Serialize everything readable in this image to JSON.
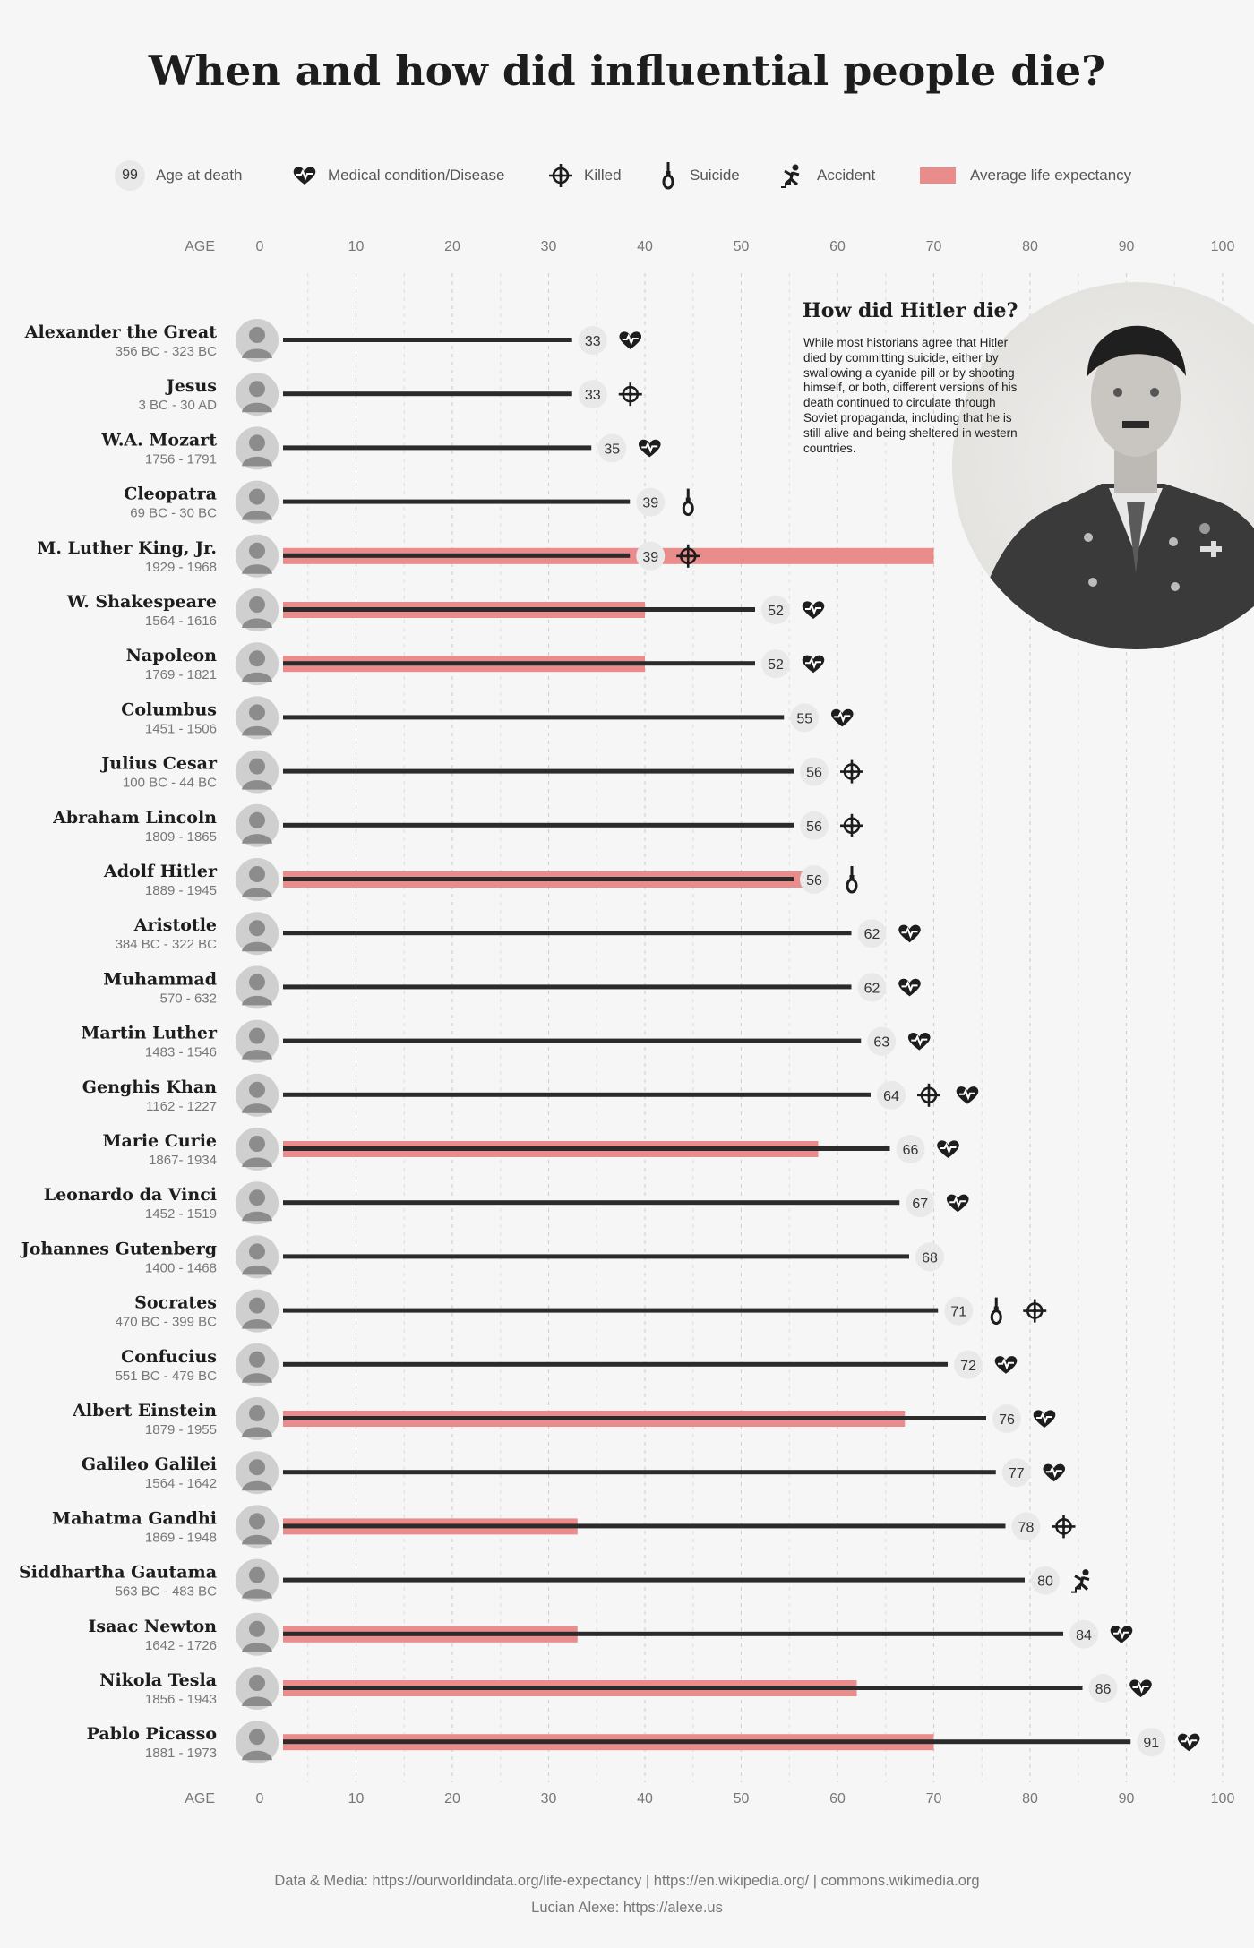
{
  "title": "When and how did influential people die?",
  "legend": {
    "age_badge": "99",
    "age_label": "Age at death",
    "medical_label": "Medical condition/Disease",
    "killed_label": "Killed",
    "suicide_label": "Suicide",
    "accident_label": "Accident",
    "expectancy_label": "Average life expectancy"
  },
  "inset": {
    "title": "How did Hitler die?",
    "text": "While most historians agree that Hitler died by committing suicide, either by swallowing a cyanide pill or by shooting himself, or both, different versions of his death continued to circulate through Soviet propaganda, including that he is still alive and being sheltered in western countries."
  },
  "footer": {
    "sources": "Data & Media: https://ourworldindata.org/life-expectancy | https://en.wikipedia.org/ | commons.wikimedia.org",
    "author": "Lucian Alexe: https://alexe.us"
  },
  "colors": {
    "bar": "#2b2b2b",
    "expectancy": "#ea8c8c",
    "badge": "#e9e9e9",
    "background": "#f6f6f6"
  },
  "chart_data": {
    "type": "bar",
    "orientation": "horizontal",
    "xlabel": "AGE",
    "xlim": [
      0,
      100
    ],
    "xticks": [
      0,
      10,
      20,
      30,
      40,
      50,
      60,
      70,
      80,
      90,
      100
    ],
    "grid": true,
    "legend_position": "top",
    "people": [
      {
        "name": "Alexander the Great",
        "dates": "356 BC - 323 BC",
        "age": 33,
        "causes": [
          "medical"
        ],
        "expectancy": null
      },
      {
        "name": "Jesus",
        "dates": "3 BC - 30 AD",
        "age": 33,
        "causes": [
          "killed"
        ],
        "expectancy": null
      },
      {
        "name": "W.A. Mozart",
        "dates": "1756 - 1791",
        "age": 35,
        "causes": [
          "medical"
        ],
        "expectancy": null
      },
      {
        "name": "Cleopatra",
        "dates": "69 BC - 30 BC",
        "age": 39,
        "causes": [
          "suicide"
        ],
        "expectancy": null
      },
      {
        "name": "M. Luther King, Jr.",
        "dates": "1929 - 1968",
        "age": 39,
        "causes": [
          "killed"
        ],
        "expectancy": 70
      },
      {
        "name": "W. Shakespeare",
        "dates": "1564 - 1616",
        "age": 52,
        "causes": [
          "medical"
        ],
        "expectancy": 40
      },
      {
        "name": "Napoleon",
        "dates": "1769 - 1821",
        "age": 52,
        "causes": [
          "medical"
        ],
        "expectancy": 40
      },
      {
        "name": "Columbus",
        "dates": "1451 - 1506",
        "age": 55,
        "causes": [
          "medical"
        ],
        "expectancy": null
      },
      {
        "name": "Julius Cesar",
        "dates": "100 BC - 44 BC",
        "age": 56,
        "causes": [
          "killed"
        ],
        "expectancy": null
      },
      {
        "name": "Abraham Lincoln",
        "dates": "1809 - 1865",
        "age": 56,
        "causes": [
          "killed"
        ],
        "expectancy": null
      },
      {
        "name": "Adolf Hitler",
        "dates": "1889 - 1945",
        "age": 56,
        "causes": [
          "suicide"
        ],
        "expectancy": 58
      },
      {
        "name": "Aristotle",
        "dates": "384 BC - 322 BC",
        "age": 62,
        "causes": [
          "medical"
        ],
        "expectancy": null
      },
      {
        "name": "Muhammad",
        "dates": "570 - 632",
        "age": 62,
        "causes": [
          "medical"
        ],
        "expectancy": null
      },
      {
        "name": "Martin Luther",
        "dates": "1483 - 1546",
        "age": 63,
        "causes": [
          "medical"
        ],
        "expectancy": null
      },
      {
        "name": "Genghis Khan",
        "dates": "1162 - 1227",
        "age": 64,
        "causes": [
          "killed",
          "medical"
        ],
        "expectancy": null
      },
      {
        "name": "Marie Curie",
        "dates": "1867- 1934",
        "age": 66,
        "causes": [
          "medical"
        ],
        "expectancy": 58
      },
      {
        "name": "Leonardo da Vinci",
        "dates": "1452 - 1519",
        "age": 67,
        "causes": [
          "medical"
        ],
        "expectancy": null
      },
      {
        "name": "Johannes Gutenberg",
        "dates": "1400 - 1468",
        "age": 68,
        "causes": [],
        "expectancy": null
      },
      {
        "name": "Socrates",
        "dates": "470 BC - 399 BC",
        "age": 71,
        "causes": [
          "suicide",
          "killed"
        ],
        "expectancy": null
      },
      {
        "name": "Confucius",
        "dates": "551 BC - 479 BC",
        "age": 72,
        "causes": [
          "medical"
        ],
        "expectancy": null
      },
      {
        "name": "Albert Einstein",
        "dates": "1879 - 1955",
        "age": 76,
        "causes": [
          "medical"
        ],
        "expectancy": 67
      },
      {
        "name": "Galileo Galilei",
        "dates": "1564 - 1642",
        "age": 77,
        "causes": [
          "medical"
        ],
        "expectancy": null
      },
      {
        "name": "Mahatma Gandhi",
        "dates": "1869 - 1948",
        "age": 78,
        "causes": [
          "killed"
        ],
        "expectancy": 33
      },
      {
        "name": "Siddhartha Gautama",
        "dates": "563 BC - 483 BC",
        "age": 80,
        "causes": [
          "accident"
        ],
        "expectancy": null
      },
      {
        "name": "Isaac Newton",
        "dates": "1642 - 1726",
        "age": 84,
        "causes": [
          "medical"
        ],
        "expectancy": 33
      },
      {
        "name": "Nikola Tesla",
        "dates": "1856 - 1943",
        "age": 86,
        "causes": [
          "medical"
        ],
        "expectancy": 62
      },
      {
        "name": "Pablo Picasso",
        "dates": "1881 - 1973",
        "age": 91,
        "causes": [
          "medical"
        ],
        "expectancy": 70
      }
    ]
  }
}
